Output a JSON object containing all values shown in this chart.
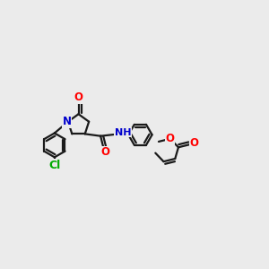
{
  "background_color": "#ebebeb",
  "bond_color": "#1a1a1a",
  "bond_width": 1.6,
  "atom_colors": {
    "O": "#ff0000",
    "N": "#0000cc",
    "Cl": "#00aa00",
    "H": "#7fbfbf",
    "C": "#1a1a1a"
  },
  "font_size": 8.5,
  "figsize": [
    3.0,
    3.0
  ],
  "dpi": 100
}
